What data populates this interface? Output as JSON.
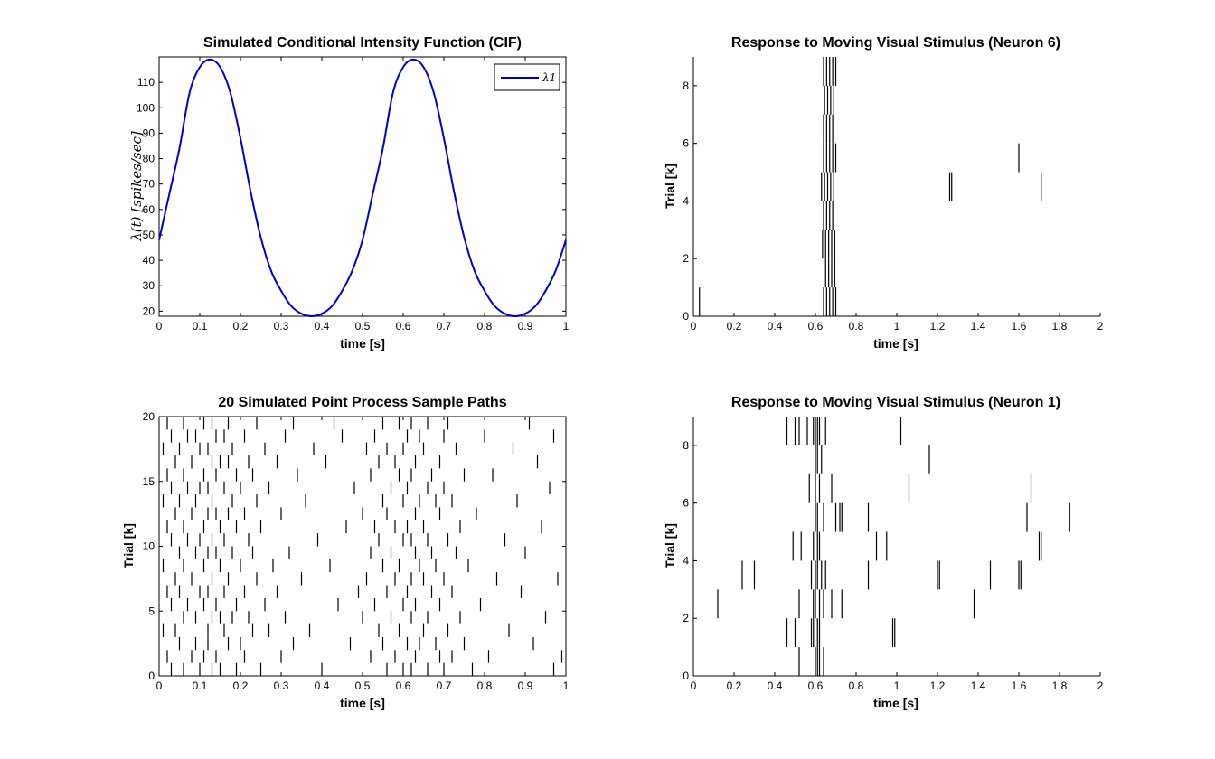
{
  "chart_data": [
    {
      "type": "line",
      "title": "Simulated Conditional Intensity Function (CIF)",
      "xlabel": "time [s]",
      "ylabel": "λ(t) [spikes/sec]",
      "xlim": [
        0,
        1
      ],
      "ylim": [
        18,
        120
      ],
      "xticks": [
        "0",
        "0.1",
        "0.2",
        "0.3",
        "0.4",
        "0.5",
        "0.6",
        "0.7",
        "0.8",
        "0.9",
        "1"
      ],
      "yticks": [
        "20",
        "30",
        "40",
        "50",
        "60",
        "70",
        "80",
        "90",
        "100",
        "110"
      ],
      "legend": {
        "position": "top-right",
        "label": "λ1"
      },
      "grid": false,
      "series": [
        {
          "name": "λ1",
          "color": "#0000cc",
          "x": [
            0,
            0.025,
            0.05,
            0.075,
            0.1,
            0.125,
            0.15,
            0.175,
            0.2,
            0.225,
            0.25,
            0.275,
            0.3,
            0.325,
            0.35,
            0.375,
            0.4,
            0.425,
            0.45,
            0.475,
            0.5,
            0.525,
            0.55,
            0.575,
            0.6,
            0.625,
            0.65,
            0.675,
            0.7,
            0.725,
            0.75,
            0.775,
            0.8,
            0.825,
            0.85,
            0.875,
            0.9,
            0.925,
            0.95,
            0.975,
            1
          ],
          "y": [
            48,
            66,
            84,
            106,
            116,
            119,
            116,
            106,
            88,
            67,
            49,
            36,
            28,
            22,
            19,
            18,
            19,
            22,
            28,
            36,
            48,
            66,
            84,
            106,
            116,
            119,
            116,
            106,
            88,
            67,
            49,
            36,
            28,
            22,
            19,
            18,
            19,
            22,
            28,
            36,
            48
          ]
        }
      ]
    },
    {
      "type": "raster",
      "title": "Response to Moving Visual Stimulus (Neuron 6)",
      "xlabel": "time [s]",
      "ylabel": "Trial [k]",
      "xlim": [
        0,
        2
      ],
      "ylim": [
        0,
        9
      ],
      "xticks": [
        "0",
        "0.2",
        "0.4",
        "0.6",
        "0.8",
        "1",
        "1.2",
        "1.4",
        "1.6",
        "1.8",
        "2"
      ],
      "yticks": [
        "0",
        "2",
        "4",
        "6",
        "8"
      ],
      "trials": [
        [
          0.03,
          0.64,
          0.655,
          0.67,
          0.685,
          0.7
        ],
        [
          0.65,
          0.665,
          0.68,
          0.695
        ],
        [
          0.635,
          0.65,
          0.665,
          0.68,
          0.695
        ],
        [
          0.64,
          0.655,
          0.67,
          0.685
        ],
        [
          0.63,
          0.645,
          0.66,
          0.675,
          0.69,
          1.26,
          1.27,
          1.71
        ],
        [
          0.64,
          0.655,
          0.67,
          0.685,
          0.7,
          1.6
        ],
        [
          0.64,
          0.655,
          0.67,
          0.685
        ],
        [
          0.645,
          0.66,
          0.675,
          0.69
        ],
        [
          0.64,
          0.655,
          0.67,
          0.685,
          0.7
        ]
      ]
    },
    {
      "type": "raster",
      "title": "20 Simulated Point Process Sample Paths",
      "xlabel": "time [s]",
      "ylabel": "Trial [k]",
      "xlim": [
        0,
        1
      ],
      "ylim": [
        0,
        20
      ],
      "xticks": [
        "0",
        "0.1",
        "0.2",
        "0.3",
        "0.4",
        "0.5",
        "0.6",
        "0.7",
        "0.8",
        "0.9",
        "1"
      ],
      "yticks": [
        "0",
        "5",
        "10",
        "15",
        "20"
      ],
      "trials": [
        [
          0.03,
          0.06,
          0.1,
          0.13,
          0.15,
          0.19,
          0.25,
          0.4,
          0.56,
          0.6,
          0.62,
          0.66,
          0.7,
          0.77,
          0.97
        ],
        [
          0.02,
          0.08,
          0.11,
          0.14,
          0.21,
          0.3,
          0.52,
          0.58,
          0.63,
          0.69,
          0.72,
          0.81,
          0.99
        ],
        [
          0.05,
          0.09,
          0.12,
          0.17,
          0.2,
          0.33,
          0.47,
          0.55,
          0.61,
          0.64,
          0.68,
          0.75,
          0.92
        ],
        [
          0.01,
          0.04,
          0.12,
          0.16,
          0.23,
          0.27,
          0.37,
          0.54,
          0.59,
          0.65,
          0.71,
          0.86
        ],
        [
          0.06,
          0.09,
          0.13,
          0.15,
          0.18,
          0.22,
          0.31,
          0.5,
          0.57,
          0.62,
          0.66,
          0.74,
          0.95
        ],
        [
          0.03,
          0.07,
          0.11,
          0.14,
          0.19,
          0.26,
          0.44,
          0.53,
          0.6,
          0.63,
          0.69,
          0.79
        ],
        [
          0.02,
          0.05,
          0.1,
          0.12,
          0.16,
          0.21,
          0.29,
          0.49,
          0.56,
          0.61,
          0.67,
          0.72,
          0.89
        ],
        [
          0.04,
          0.08,
          0.13,
          0.17,
          0.24,
          0.35,
          0.51,
          0.58,
          0.62,
          0.65,
          0.7,
          0.83,
          0.98
        ],
        [
          0.01,
          0.06,
          0.11,
          0.15,
          0.2,
          0.28,
          0.42,
          0.55,
          0.59,
          0.64,
          0.68,
          0.76
        ],
        [
          0.05,
          0.09,
          0.12,
          0.14,
          0.18,
          0.23,
          0.32,
          0.52,
          0.57,
          0.63,
          0.67,
          0.73,
          0.9
        ],
        [
          0.03,
          0.07,
          0.1,
          0.13,
          0.16,
          0.22,
          0.39,
          0.54,
          0.6,
          0.62,
          0.66,
          0.71,
          0.85
        ],
        [
          0.02,
          0.06,
          0.11,
          0.15,
          0.19,
          0.25,
          0.46,
          0.53,
          0.58,
          0.61,
          0.65,
          0.74,
          0.94
        ],
        [
          0.04,
          0.08,
          0.12,
          0.14,
          0.17,
          0.21,
          0.3,
          0.5,
          0.56,
          0.63,
          0.69,
          0.78
        ],
        [
          0.01,
          0.05,
          0.09,
          0.13,
          0.18,
          0.24,
          0.36,
          0.55,
          0.6,
          0.64,
          0.68,
          0.72,
          0.88
        ],
        [
          0.03,
          0.07,
          0.1,
          0.12,
          0.16,
          0.2,
          0.27,
          0.48,
          0.57,
          0.61,
          0.66,
          0.7,
          0.96
        ],
        [
          0.02,
          0.06,
          0.11,
          0.14,
          0.19,
          0.23,
          0.34,
          0.52,
          0.59,
          0.62,
          0.67,
          0.75,
          0.82
        ],
        [
          0.04,
          0.08,
          0.13,
          0.15,
          0.17,
          0.22,
          0.29,
          0.41,
          0.54,
          0.58,
          0.63,
          0.69,
          0.93
        ],
        [
          0.01,
          0.05,
          0.1,
          0.12,
          0.18,
          0.26,
          0.38,
          0.51,
          0.56,
          0.6,
          0.65,
          0.73,
          0.87
        ],
        [
          0.03,
          0.07,
          0.09,
          0.14,
          0.16,
          0.21,
          0.31,
          0.45,
          0.53,
          0.61,
          0.64,
          0.7,
          0.8,
          0.97
        ],
        [
          0.02,
          0.06,
          0.11,
          0.13,
          0.17,
          0.24,
          0.33,
          0.43,
          0.55,
          0.59,
          0.62,
          0.66,
          0.71,
          0.91
        ]
      ]
    },
    {
      "type": "raster",
      "title": "Response to Moving Visual Stimulus (Neuron 1)",
      "xlabel": "time [s]",
      "ylabel": "Trial [k]",
      "xlim": [
        0,
        2
      ],
      "ylim": [
        0,
        9
      ],
      "xticks": [
        "0",
        "0.2",
        "0.4",
        "0.6",
        "0.8",
        "1",
        "1.2",
        "1.4",
        "1.6",
        "1.8",
        "2"
      ],
      "yticks": [
        "0",
        "2",
        "4",
        "6",
        "8"
      ],
      "trials": [
        [
          0.52,
          0.6,
          0.61,
          0.62,
          0.64
        ],
        [
          0.46,
          0.5,
          0.58,
          0.59,
          0.61,
          0.62,
          0.98,
          0.99
        ],
        [
          0.12,
          0.52,
          0.59,
          0.6,
          0.62,
          0.64,
          0.68,
          0.73,
          1.38
        ],
        [
          0.24,
          0.3,
          0.58,
          0.6,
          0.61,
          0.63,
          0.65,
          0.86,
          1.2,
          1.21,
          1.46,
          1.6,
          1.61
        ],
        [
          0.49,
          0.53,
          0.59,
          0.61,
          0.62,
          0.9,
          0.95,
          1.7,
          1.71
        ],
        [
          0.6,
          0.61,
          0.64,
          0.7,
          0.72,
          0.73,
          0.86,
          1.64,
          1.85
        ],
        [
          0.57,
          0.6,
          0.62,
          0.68,
          1.06,
          1.66
        ],
        [
          0.6,
          0.61,
          0.63,
          1.16
        ],
        [
          0.46,
          0.5,
          0.52,
          0.56,
          0.59,
          0.6,
          0.61,
          0.62,
          0.65,
          1.02
        ]
      ]
    }
  ]
}
